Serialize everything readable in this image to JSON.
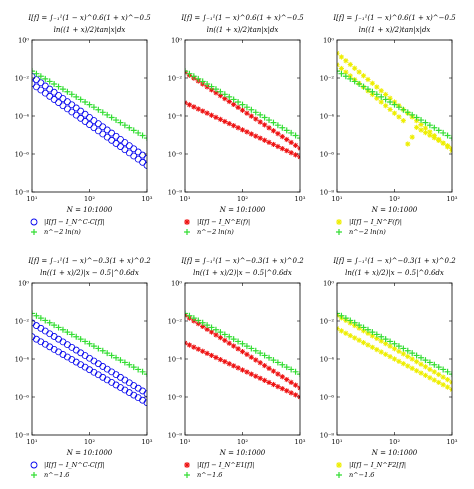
{
  "figure": {
    "background": "#ffffff"
  },
  "chart_data": [
    {
      "type": "scatter",
      "title_line1": "I[f] = ∫₋₁¹(1 − x)^0.6(1 + x)^−0.5",
      "title_line2": "ln((1 + x)/2)tan|x|dx",
      "xlabel": "N = 10:1000",
      "xscale": "log",
      "yscale": "log",
      "xlim": [
        10,
        1000
      ],
      "ylim": [
        1e-08,
        1
      ],
      "xticks": [
        "10¹",
        "10²",
        "10³"
      ],
      "yticks": [
        "10⁰",
        "10⁻²",
        "10⁻⁴",
        "10⁻⁶",
        "10⁻⁸"
      ],
      "series": [
        {
          "name": "|I[f] − I_N^C-C[f]|",
          "marker": "circle",
          "color": "#0000ee",
          "bands": [
            {
              "x": [
                10,
                1000
              ],
              "y": [
                0.012,
                6e-07
              ]
            },
            {
              "x": [
                10,
                1000
              ],
              "y": [
                0.005,
                2.5e-07
              ]
            }
          ]
        },
        {
          "name": "n^−2 ln(n)",
          "marker": "plus",
          "color": "#33dd33",
          "bands": [
            {
              "x": [
                10,
                1000
              ],
              "y": [
                0.023,
                6.9e-06
              ]
            }
          ]
        }
      ]
    },
    {
      "type": "scatter",
      "title_line1": "I[f] = ∫₋₁¹(1 − x)^0.6(1 + x)^−0.5",
      "title_line2": "ln((1 + x)/2)tan|x|dx",
      "xlabel": "N = 10:1000",
      "xscale": "log",
      "yscale": "log",
      "xlim": [
        10,
        1000
      ],
      "ylim": [
        1e-08,
        1
      ],
      "xticks": [
        "10¹",
        "10²",
        "10³"
      ],
      "yticks": [
        "10⁰",
        "10⁻²",
        "10⁻⁴",
        "10⁻⁶",
        "10⁻⁸"
      ],
      "series": [
        {
          "name": "|I[f] − I_N^E(f)|",
          "marker": "star",
          "color": "#ee1111",
          "bands": [
            {
              "x": [
                10,
                1000
              ],
              "y": [
                0.02,
                2e-06
              ]
            },
            {
              "x": [
                10,
                1000
              ],
              "y": [
                0.0005,
                7e-07
              ]
            }
          ]
        },
        {
          "name": "n^−2 ln(n)",
          "marker": "plus",
          "color": "#33dd33",
          "bands": [
            {
              "x": [
                10,
                1000
              ],
              "y": [
                0.023,
                6.9e-06
              ]
            }
          ]
        }
      ]
    },
    {
      "type": "scatter",
      "title_line1": "I[f] = ∫₋₁¹(1 − x)^0.6(1 + x)^−0.5",
      "title_line2": "ln((1 + x)/2)tan|x|dx",
      "xlabel": "N = 10:1000",
      "xscale": "log",
      "yscale": "log",
      "xlim": [
        10,
        1000
      ],
      "ylim": [
        1e-08,
        1
      ],
      "xticks": [
        "10¹",
        "10²",
        "10³"
      ],
      "yticks": [
        "10⁰",
        "10⁻²",
        "10⁻⁴",
        "10⁻⁶",
        "10⁻⁸"
      ],
      "series": [
        {
          "name": "|I[f] − I_N^F(f)|",
          "marker": "star",
          "color": "#eeee00",
          "bands": [
            {
              "x": [
                10,
                1000
              ],
              "y": [
                0.2,
                1.5e-06
              ]
            },
            {
              "x": [
                10,
                150,
                180,
                220,
                1000
              ],
              "y": [
                0.05,
                5e-05,
                1e-06,
                3e-05,
                2e-06
              ]
            }
          ]
        },
        {
          "name": "n^−2 ln(n)",
          "marker": "plus",
          "color": "#33dd33",
          "bands": [
            {
              "x": [
                10,
                1000
              ],
              "y": [
                0.023,
                6.9e-06
              ]
            }
          ]
        }
      ]
    },
    {
      "type": "scatter",
      "title_line1": "I[f] = ∫₋₁¹(1 − x)^−0.3(1 + x)^0.2",
      "title_line2": "ln((1 + x)/2)|x − 0.5|^0.6dx",
      "xlabel": "N = 10:1000",
      "xscale": "log",
      "yscale": "log",
      "xlim": [
        10,
        1000
      ],
      "ylim": [
        1e-08,
        1
      ],
      "xticks": [
        "10¹",
        "10²",
        "10³"
      ],
      "yticks": [
        "10⁰",
        "10⁻²",
        "10⁻⁴",
        "10⁻⁶",
        "10⁻⁸"
      ],
      "series": [
        {
          "name": "|I[f] − I_N^C-C[f]|",
          "marker": "circle",
          "color": "#0000ee",
          "bands": [
            {
              "x": [
                10,
                1000
              ],
              "y": [
                0.008,
                1.5e-06
              ]
            },
            {
              "x": [
                10,
                1000
              ],
              "y": [
                0.0015,
                5e-07
              ]
            }
          ]
        },
        {
          "name": "n^−1.6",
          "marker": "plus",
          "color": "#33dd33",
          "bands": [
            {
              "x": [
                10,
                1000
              ],
              "y": [
                0.025,
                1.6e-05
              ]
            }
          ]
        }
      ]
    },
    {
      "type": "scatter",
      "title_line1": "I[f] = ∫₋₁¹(1 − x)^−0.3(1 + x)^0.2",
      "title_line2": "ln((1 + x)/2)|x − 0.5|^0.6dx",
      "xlabel": "N = 10:1000",
      "xscale": "log",
      "yscale": "log",
      "xlim": [
        10,
        1000
      ],
      "ylim": [
        1e-08,
        1
      ],
      "xticks": [
        "10¹",
        "10²",
        "10³"
      ],
      "yticks": [
        "10⁰",
        "10⁻²",
        "10⁻⁴",
        "10⁻⁶",
        "10⁻⁸"
      ],
      "series": [
        {
          "name": "|I[f] − I_N^E1[f]|",
          "marker": "star",
          "color": "#ee1111",
          "bands": [
            {
              "x": [
                10,
                1000
              ],
              "y": [
                0.02,
                3e-06
              ]
            },
            {
              "x": [
                10,
                1000
              ],
              "y": [
                0.0007,
                1e-06
              ]
            }
          ]
        },
        {
          "name": "n^−1.6",
          "marker": "plus",
          "color": "#33dd33",
          "bands": [
            {
              "x": [
                10,
                1000
              ],
              "y": [
                0.025,
                1.6e-05
              ]
            }
          ]
        }
      ]
    },
    {
      "type": "scatter",
      "title_line1": "I[f] = ∫₋₁¹(1 − x)^−0.3(1 + x)^0.2",
      "title_line2": "ln((1 + x)/2)|x − 0.5|^0.6dx",
      "xlabel": "N = 10:1000",
      "xscale": "log",
      "yscale": "log",
      "xlim": [
        10,
        1000
      ],
      "ylim": [
        1e-08,
        1
      ],
      "xticks": [
        "10¹",
        "10²",
        "10³"
      ],
      "yticks": [
        "10⁰",
        "10⁻²",
        "10⁻⁴",
        "10⁻⁶",
        "10⁻⁸"
      ],
      "series": [
        {
          "name": "|I[f] − I_N^F2[f]|",
          "marker": "star",
          "color": "#eeee00",
          "bands": [
            {
              "x": [
                10,
                1000
              ],
              "y": [
                0.02,
                6e-06
              ]
            },
            {
              "x": [
                10,
                1000
              ],
              "y": [
                0.004,
                2.5e-06
              ]
            }
          ]
        },
        {
          "name": "n^−1.6",
          "marker": "plus",
          "color": "#33dd33",
          "bands": [
            {
              "x": [
                10,
                1000
              ],
              "y": [
                0.025,
                1.6e-05
              ]
            }
          ]
        }
      ]
    }
  ]
}
